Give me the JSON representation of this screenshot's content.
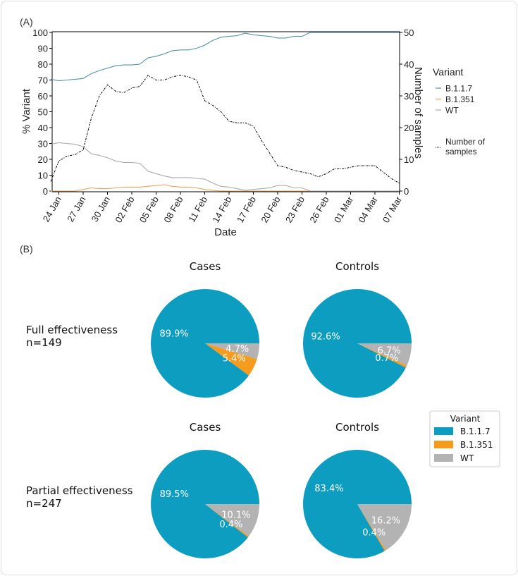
{
  "panel_labels": {
    "a": "(A)",
    "b": "(B)"
  },
  "chart_data": [
    {
      "type": "line",
      "xlabel": "Date",
      "ylabel": "% Variant",
      "y2label": "Number of samples",
      "ylim": [
        0,
        100
      ],
      "y2lim": [
        0,
        50
      ],
      "yticks": [
        "0",
        "10",
        "20",
        "30",
        "40",
        "50",
        "60",
        "70",
        "80",
        "90",
        "100"
      ],
      "y2ticks": [
        "0",
        "10",
        "20",
        "30",
        "40",
        "50"
      ],
      "xticks": [
        "24 Jan",
        "27 Jan",
        "30 Jan",
        "02 Feb",
        "05 Feb",
        "08 Feb",
        "11 Feb",
        "14 Feb",
        "17 Feb",
        "20 Feb",
        "23 Feb",
        "26 Feb",
        "01 Mar",
        "04 Mar",
        "07 Mar"
      ],
      "x_start": "23 Jan",
      "x_end": "07 Mar",
      "grid": false,
      "legend": {
        "title": "Variant",
        "placement": "right"
      },
      "series": [
        {
          "name": "B.1.1.7",
          "color": "#4f93ad",
          "axis": "left",
          "values": [
            70.5,
            69.5,
            70,
            70.5,
            71,
            74,
            76,
            77.5,
            79,
            79.5,
            79.5,
            80,
            84,
            85,
            86.5,
            88.5,
            89,
            89,
            90,
            92,
            95,
            97,
            97.5,
            98,
            99.5,
            98.5,
            98,
            97.5,
            96.5,
            96.5,
            97.5,
            97.5,
            100,
            100,
            100,
            100,
            100,
            100,
            100,
            100,
            100,
            100,
            100,
            100
          ]
        },
        {
          "name": "B.1.351",
          "color": "#e9a35a",
          "axis": "left",
          "values": [
            0,
            0,
            0,
            0,
            1,
            2,
            1.5,
            1.5,
            2,
            2.5,
            2.5,
            2.5,
            3,
            3.5,
            4,
            3,
            2.5,
            2.5,
            2,
            1,
            0.5,
            0,
            0,
            0,
            0,
            0,
            0,
            0,
            0,
            0,
            0,
            0,
            0,
            0,
            0,
            0,
            0,
            0,
            0,
            0,
            0,
            0,
            0,
            0
          ]
        },
        {
          "name": "WT",
          "color": "#ababab",
          "axis": "left",
          "values": [
            29.5,
            30.5,
            30,
            29.5,
            28,
            23.5,
            22.5,
            21,
            19,
            18,
            18,
            17.5,
            12.5,
            11,
            9.5,
            8.5,
            8.5,
            8.5,
            8,
            7.5,
            5,
            3,
            2.5,
            1.5,
            0.5,
            1,
            1.5,
            2,
            3.5,
            3.5,
            2,
            2,
            0,
            0,
            0,
            0,
            0,
            0,
            0,
            0,
            0,
            0,
            0,
            0
          ]
        },
        {
          "name": "Number of samples",
          "color": "#000000",
          "axis": "right",
          "dash": "dashdot",
          "values": [
            3,
            9.5,
            11,
            11.5,
            13,
            23,
            30,
            33.5,
            31.5,
            31,
            32.5,
            33,
            36.5,
            35,
            35,
            36,
            36.5,
            36,
            35,
            28.5,
            27,
            25,
            22,
            21.5,
            21.5,
            20.5,
            16,
            12,
            8,
            7.5,
            6.5,
            6,
            5.5,
            4.5,
            5.5,
            7,
            7,
            7.5,
            8,
            8,
            8,
            6,
            4,
            2.5
          ]
        }
      ]
    },
    {
      "type": "pie",
      "legend": {
        "title": "Variant",
        "placement": "right",
        "entries": [
          "B.1.1.7",
          "B.1.351",
          "WT"
        ]
      },
      "colors": {
        "B.1.1.7": "#0d9dc1",
        "B.1.351": "#f59b1d",
        "WT": "#b3b3b3"
      },
      "rows": [
        {
          "label": "Full effectiveness",
          "n": "n=149",
          "pies": [
            {
              "title": "Cases",
              "values": {
                "B.1.1.7": 89.9,
                "B.1.351": 5.4,
                "WT": 4.7
              },
              "labels": [
                "89.9%",
                "5.4%",
                "4.7%"
              ]
            },
            {
              "title": "Controls",
              "values": {
                "B.1.1.7": 92.6,
                "B.1.351": 0.7,
                "WT": 6.7
              },
              "labels": [
                "92.6%",
                "0.7%",
                "6.7%"
              ]
            }
          ]
        },
        {
          "label": "Partial effectiveness",
          "n": "n=247",
          "pies": [
            {
              "title": "Cases",
              "values": {
                "B.1.1.7": 89.5,
                "B.1.351": 0.4,
                "WT": 10.1
              },
              "labels": [
                "89.5%",
                "0.4%",
                "10.1%"
              ]
            },
            {
              "title": "Controls",
              "values": {
                "B.1.1.7": 83.4,
                "B.1.351": 0.4,
                "WT": 16.2
              },
              "labels": [
                "83.4%",
                "0.4%",
                "16.2%"
              ]
            }
          ]
        }
      ]
    }
  ]
}
